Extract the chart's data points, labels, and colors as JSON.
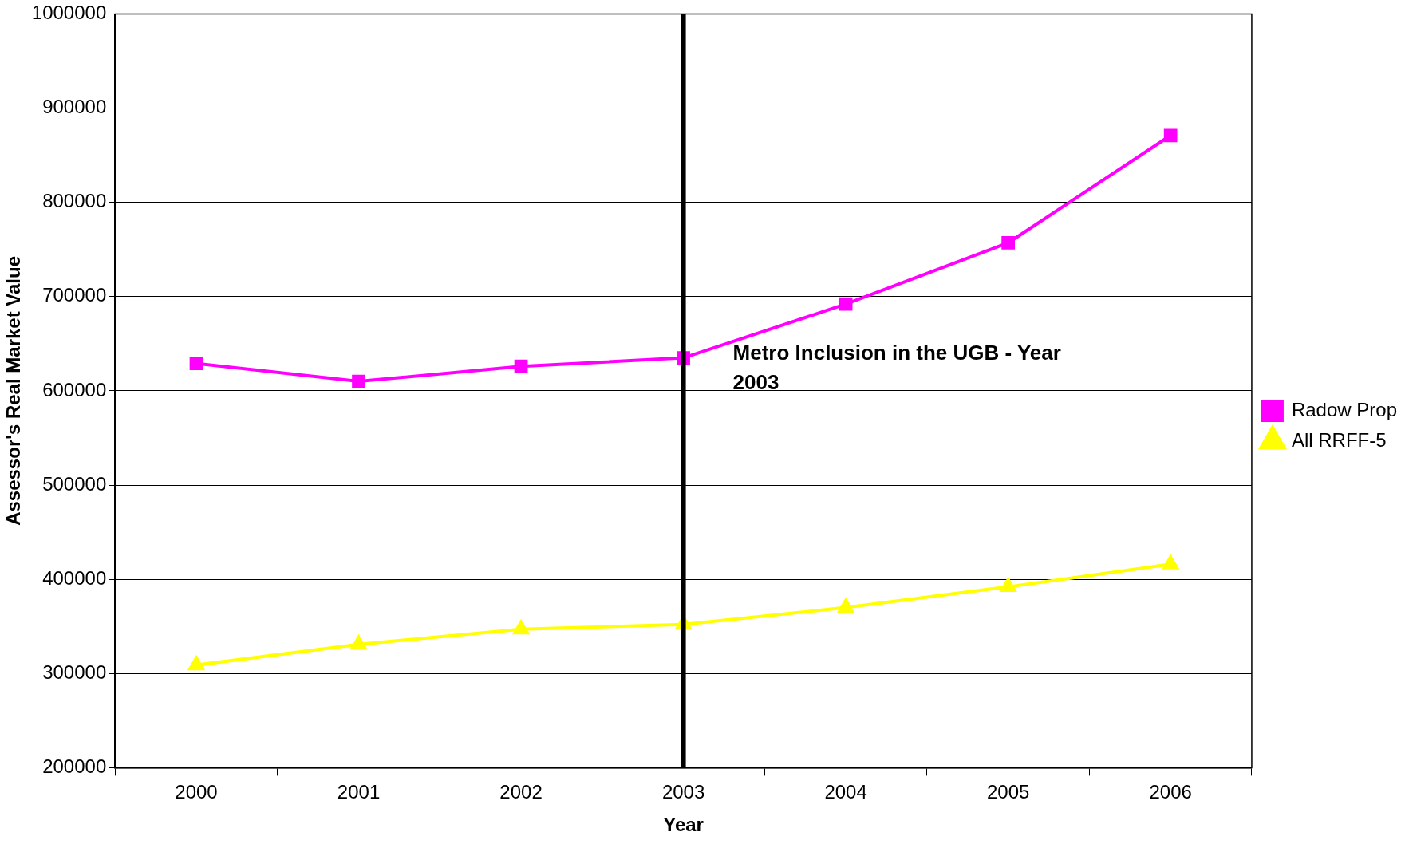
{
  "chart_data": {
    "type": "line",
    "xlabel": "Year",
    "ylabel": "Assessor's Real Market Value",
    "categories": [
      "2000",
      "2001",
      "2002",
      "2003",
      "2004",
      "2005",
      "2006"
    ],
    "series": [
      {
        "name": "Radow Prop",
        "color": "#ff00ff",
        "marker": "square",
        "values": [
          629000,
          610000,
          626000,
          635000,
          692000,
          757000,
          871000
        ]
      },
      {
        "name": "All RRFF-5",
        "color": "#ffff00",
        "marker": "triangle",
        "values": [
          309000,
          331000,
          347000,
          352000,
          370000,
          392000,
          416000
        ]
      }
    ],
    "ylim": [
      200000,
      1000000
    ],
    "yticks": [
      200000,
      300000,
      400000,
      500000,
      600000,
      700000,
      800000,
      900000,
      1000000
    ],
    "grid": "y",
    "legend": "right",
    "ref_lines": [
      {
        "axis": "x",
        "value": "2003",
        "color": "#000000"
      }
    ],
    "annotations": [
      "Metro Inclusion in the UGB - Year 2003"
    ]
  }
}
